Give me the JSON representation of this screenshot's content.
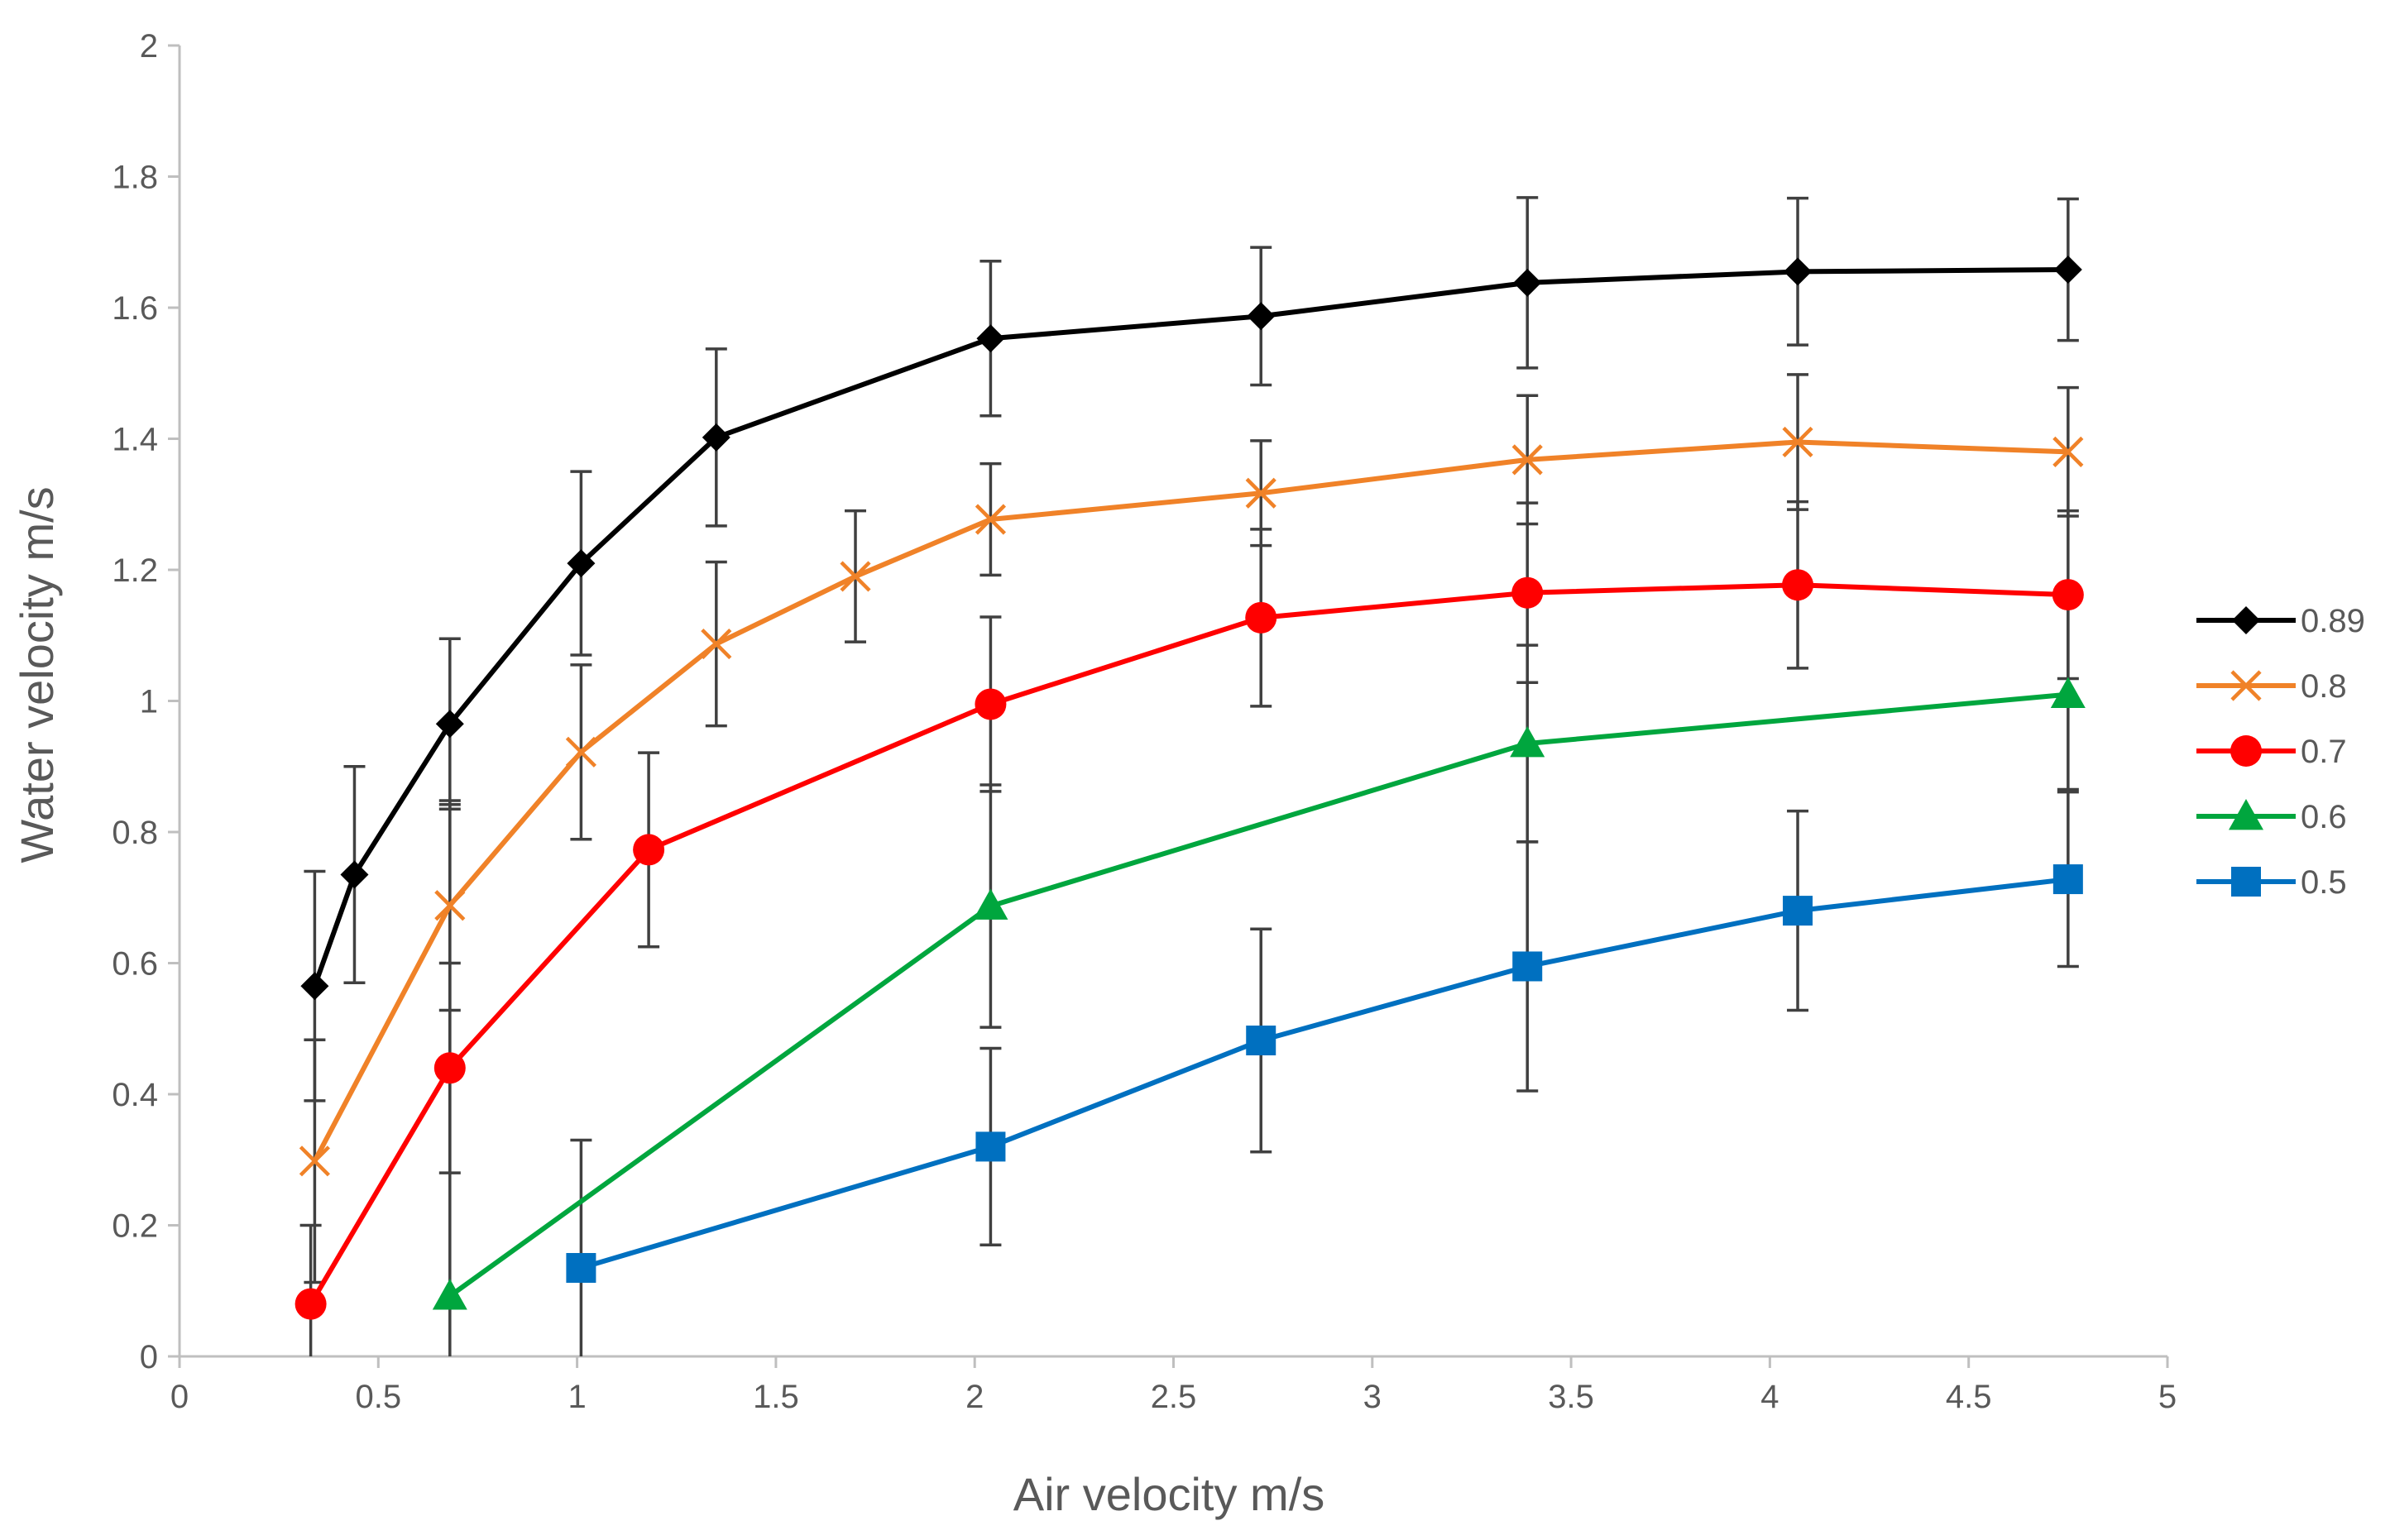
{
  "chart_data": {
    "type": "line",
    "title": "",
    "xlabel": "Air velocity m/s",
    "ylabel": "Water velocity m/s",
    "xlim": [
      0,
      5
    ],
    "ylim": [
      0,
      2
    ],
    "xticks": [
      0,
      0.5,
      1,
      1.5,
      2,
      2.5,
      3,
      3.5,
      4,
      4.5,
      5
    ],
    "xtick_labels": [
      "0",
      "0.5",
      "1",
      "1.5",
      "2",
      "2.5",
      "3",
      "3.5",
      "4",
      "4.5",
      "5"
    ],
    "yticks": [
      0,
      0.2,
      0.4,
      0.6,
      0.8,
      1,
      1.2,
      1.4,
      1.6,
      1.8,
      2
    ],
    "ytick_labels": [
      "0",
      "0.2",
      "0.4",
      "0.6",
      "0.8",
      "1",
      "1.2",
      "1.4",
      "1.6",
      "1.8",
      "2"
    ],
    "grid": false,
    "legend_position": "right",
    "series": [
      {
        "name": "0.89",
        "color": "#000000",
        "marker": "diamond",
        "x": [
          0.34,
          0.44,
          0.68,
          1.01,
          1.35,
          2.04,
          2.72,
          3.39,
          4.07,
          4.75
        ],
        "y": [
          0.565,
          0.735,
          0.965,
          1.21,
          1.402,
          1.553,
          1.587,
          1.638,
          1.655,
          1.658
        ],
        "err": [
          0.175,
          0.165,
          0.13,
          0.14,
          0.135,
          0.118,
          0.105,
          0.13,
          0.112,
          0.108
        ]
      },
      {
        "name": "0.8",
        "color": "#F08228",
        "marker": "x",
        "x": [
          0.34,
          0.68,
          1.01,
          1.35,
          1.7,
          2.04,
          2.72,
          3.39,
          4.07,
          4.75
        ],
        "y": [
          0.298,
          0.688,
          0.922,
          1.087,
          1.19,
          1.277,
          1.317,
          1.368,
          1.395,
          1.38
        ],
        "err": [
          0.185,
          0.16,
          0.133,
          0.125,
          0.1,
          0.085,
          0.08,
          0.098,
          0.103,
          0.098
        ]
      },
      {
        "name": "0.7",
        "color": "#FF0000",
        "marker": "circle",
        "x": [
          0.33,
          0.68,
          1.18,
          2.04,
          2.72,
          3.39,
          4.07,
          4.75
        ],
        "y": [
          0.08,
          0.44,
          0.773,
          0.995,
          1.127,
          1.165,
          1.177,
          1.162
        ],
        "err": [
          0.12,
          0.16,
          0.148,
          0.133,
          0.135,
          0.137,
          0.127,
          0.128
        ]
      },
      {
        "name": "0.6",
        "color": "#00A63E",
        "marker": "triangle",
        "x": [
          0.68,
          2.04,
          3.39,
          4.75
        ],
        "y": [
          0.092,
          0.687,
          0.935,
          1.01
        ],
        "err": [
          0.75,
          0.185,
          0.15,
          0.145
        ]
      },
      {
        "name": "0.5",
        "color": "#0070C0",
        "marker": "square",
        "x": [
          1.01,
          2.04,
          2.72,
          3.39,
          4.07,
          4.75
        ],
        "y": [
          0.135,
          0.32,
          0.482,
          0.595,
          0.68,
          0.728
        ],
        "err": [
          0.195,
          0.15,
          0.17,
          0.19,
          0.152,
          0.133
        ]
      }
    ]
  }
}
